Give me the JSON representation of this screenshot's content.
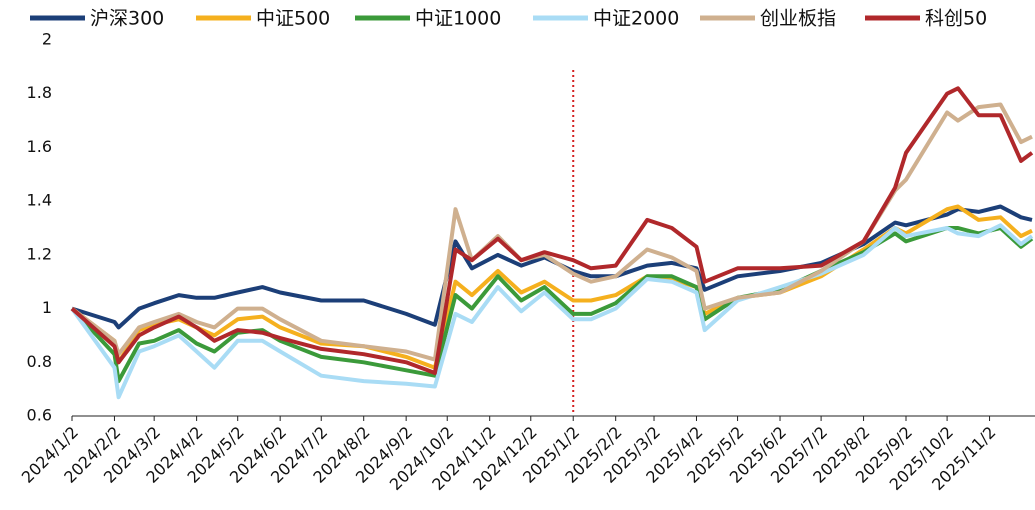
{
  "chart_data": {
    "type": "line",
    "x": [
      "2024/1/2",
      "2024/2/2",
      "2024/2/5",
      "2024/2/20",
      "2024/3/2",
      "2024/3/20",
      "2024/4/2",
      "2024/4/15",
      "2024/5/2",
      "2024/5/20",
      "2024/6/2",
      "2024/7/2",
      "2024/8/2",
      "2024/9/2",
      "2024/9/23",
      "2024/10/8",
      "2024/10/20",
      "2024/11/8",
      "2024/11/25",
      "2024/12/12",
      "2025/1/2",
      "2025/1/15",
      "2025/2/2",
      "2025/2/25",
      "2025/3/15",
      "2025/4/2",
      "2025/4/8",
      "2025/5/2",
      "2025/6/2",
      "2025/7/2",
      "2025/8/2",
      "2025/8/25",
      "2025/9/2",
      "2025/10/2",
      "2025/10/10",
      "2025/10/25",
      "2025/11/10",
      "2025/11/25",
      "2025/12/3"
    ],
    "series": [
      {
        "name": "沪深300",
        "color": "#1c3f78",
        "values": [
          1.0,
          0.95,
          0.93,
          1.0,
          1.02,
          1.05,
          1.04,
          1.04,
          1.06,
          1.08,
          1.06,
          1.03,
          1.03,
          0.98,
          0.94,
          1.25,
          1.15,
          1.2,
          1.16,
          1.19,
          1.14,
          1.12,
          1.12,
          1.16,
          1.17,
          1.15,
          1.07,
          1.12,
          1.14,
          1.17,
          1.24,
          1.32,
          1.31,
          1.35,
          1.37,
          1.36,
          1.38,
          1.34,
          1.33
        ]
      },
      {
        "name": "中证500",
        "color": "#f5b01e",
        "values": [
          1.0,
          0.88,
          0.8,
          0.92,
          0.94,
          0.96,
          0.93,
          0.9,
          0.96,
          0.97,
          0.93,
          0.87,
          0.86,
          0.82,
          0.78,
          1.1,
          1.05,
          1.14,
          1.06,
          1.1,
          1.03,
          1.03,
          1.05,
          1.12,
          1.11,
          1.08,
          0.98,
          1.04,
          1.06,
          1.12,
          1.22,
          1.3,
          1.28,
          1.37,
          1.38,
          1.33,
          1.34,
          1.27,
          1.29
        ]
      },
      {
        "name": "中证1000",
        "color": "#3b9a3a",
        "values": [
          1.0,
          0.83,
          0.73,
          0.87,
          0.88,
          0.92,
          0.87,
          0.84,
          0.91,
          0.92,
          0.88,
          0.82,
          0.8,
          0.77,
          0.75,
          1.05,
          1.0,
          1.12,
          1.03,
          1.08,
          0.98,
          0.98,
          1.02,
          1.12,
          1.12,
          1.08,
          0.96,
          1.04,
          1.07,
          1.14,
          1.21,
          1.28,
          1.25,
          1.3,
          1.3,
          1.28,
          1.3,
          1.23,
          1.26
        ]
      },
      {
        "name": "中证2000",
        "color": "#a9dcf5",
        "values": [
          1.0,
          0.78,
          0.67,
          0.84,
          0.86,
          0.9,
          0.84,
          0.78,
          0.88,
          0.88,
          0.84,
          0.75,
          0.73,
          0.72,
          0.71,
          0.98,
          0.95,
          1.08,
          0.99,
          1.06,
          0.96,
          0.96,
          1.0,
          1.11,
          1.1,
          1.06,
          0.92,
          1.03,
          1.08,
          1.13,
          1.2,
          1.3,
          1.27,
          1.3,
          1.28,
          1.27,
          1.31,
          1.24,
          1.27
        ]
      },
      {
        "name": "创业板指",
        "color": "#cfb08f",
        "values": [
          1.0,
          0.88,
          0.83,
          0.93,
          0.95,
          0.98,
          0.95,
          0.93,
          1.0,
          1.0,
          0.96,
          0.88,
          0.86,
          0.84,
          0.81,
          1.37,
          1.18,
          1.27,
          1.18,
          1.2,
          1.13,
          1.1,
          1.12,
          1.22,
          1.19,
          1.14,
          1.0,
          1.04,
          1.06,
          1.14,
          1.25,
          1.44,
          1.48,
          1.73,
          1.7,
          1.75,
          1.76,
          1.62,
          1.64
        ]
      },
      {
        "name": "科创50",
        "color": "#b0282b",
        "values": [
          1.0,
          0.86,
          0.8,
          0.9,
          0.93,
          0.97,
          0.93,
          0.88,
          0.92,
          0.91,
          0.89,
          0.85,
          0.83,
          0.8,
          0.76,
          1.22,
          1.18,
          1.26,
          1.18,
          1.21,
          1.18,
          1.15,
          1.16,
          1.33,
          1.3,
          1.23,
          1.1,
          1.15,
          1.15,
          1.16,
          1.25,
          1.45,
          1.58,
          1.8,
          1.82,
          1.72,
          1.72,
          1.55,
          1.58
        ]
      }
    ],
    "xlim": [
      "2024/1/2",
      "2025/12/3"
    ],
    "xticks": [
      "2024/1/2",
      "2024/2/2",
      "2024/3/2",
      "2024/4/2",
      "2024/5/2",
      "2024/6/2",
      "2024/7/2",
      "2024/8/2",
      "2024/9/2",
      "2024/10/2",
      "2024/11/2",
      "2024/12/2",
      "2025/1/2",
      "2025/2/2",
      "2025/3/2",
      "2025/4/2",
      "2025/5/2",
      "2025/6/2",
      "2025/7/2",
      "2025/8/2",
      "2025/9/2",
      "2025/10/2",
      "2025/11/2"
    ],
    "ylim": [
      0.6,
      2
    ],
    "yticks": [
      0.6,
      0.8,
      1,
      1.2,
      1.4,
      1.6,
      1.8,
      2
    ],
    "reference_line_x": "2025/1/2",
    "reference_line_color": "#d42020",
    "legend": "top"
  }
}
